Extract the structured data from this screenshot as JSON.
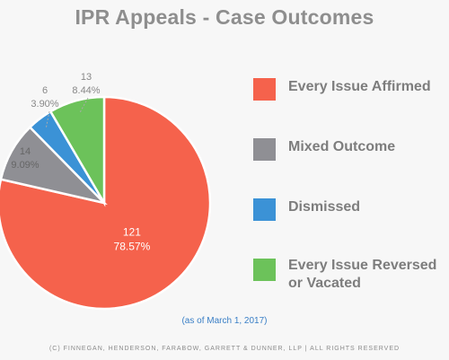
{
  "title": "IPR Appeals - Case Outcomes",
  "chart_data": {
    "type": "pie",
    "categories": [
      "Every Issue Affirmed",
      "Mixed Outcome",
      "Dismissed",
      "Every Issue Reversed or Vacated"
    ],
    "values": [
      121,
      14,
      6,
      13
    ],
    "percent_labels": [
      "78.57%",
      "9.09%",
      "3.90%",
      "8.44%"
    ],
    "count_labels": [
      "121",
      "14",
      "6",
      "13"
    ],
    "colors": [
      "#f5624c",
      "#8f8f94",
      "#3b92d6",
      "#6cc25a"
    ],
    "legend_position": "right"
  },
  "legend": {
    "items": [
      {
        "label": "Every Issue Affirmed",
        "color": "#f5624c"
      },
      {
        "label": "Mixed Outcome",
        "color": "#8f8f94"
      },
      {
        "label": "Dismissed",
        "color": "#3b92d6"
      },
      {
        "label": "Every Issue Reversed\nor Vacated",
        "color": "#6cc25a"
      }
    ]
  },
  "note": "(as of March 1, 2017)",
  "footer": "(C) FINNEGAN, HENDERSON, FARABOW, GARRETT & DUNNER, LLP | ALL RIGHTS RESERVED"
}
